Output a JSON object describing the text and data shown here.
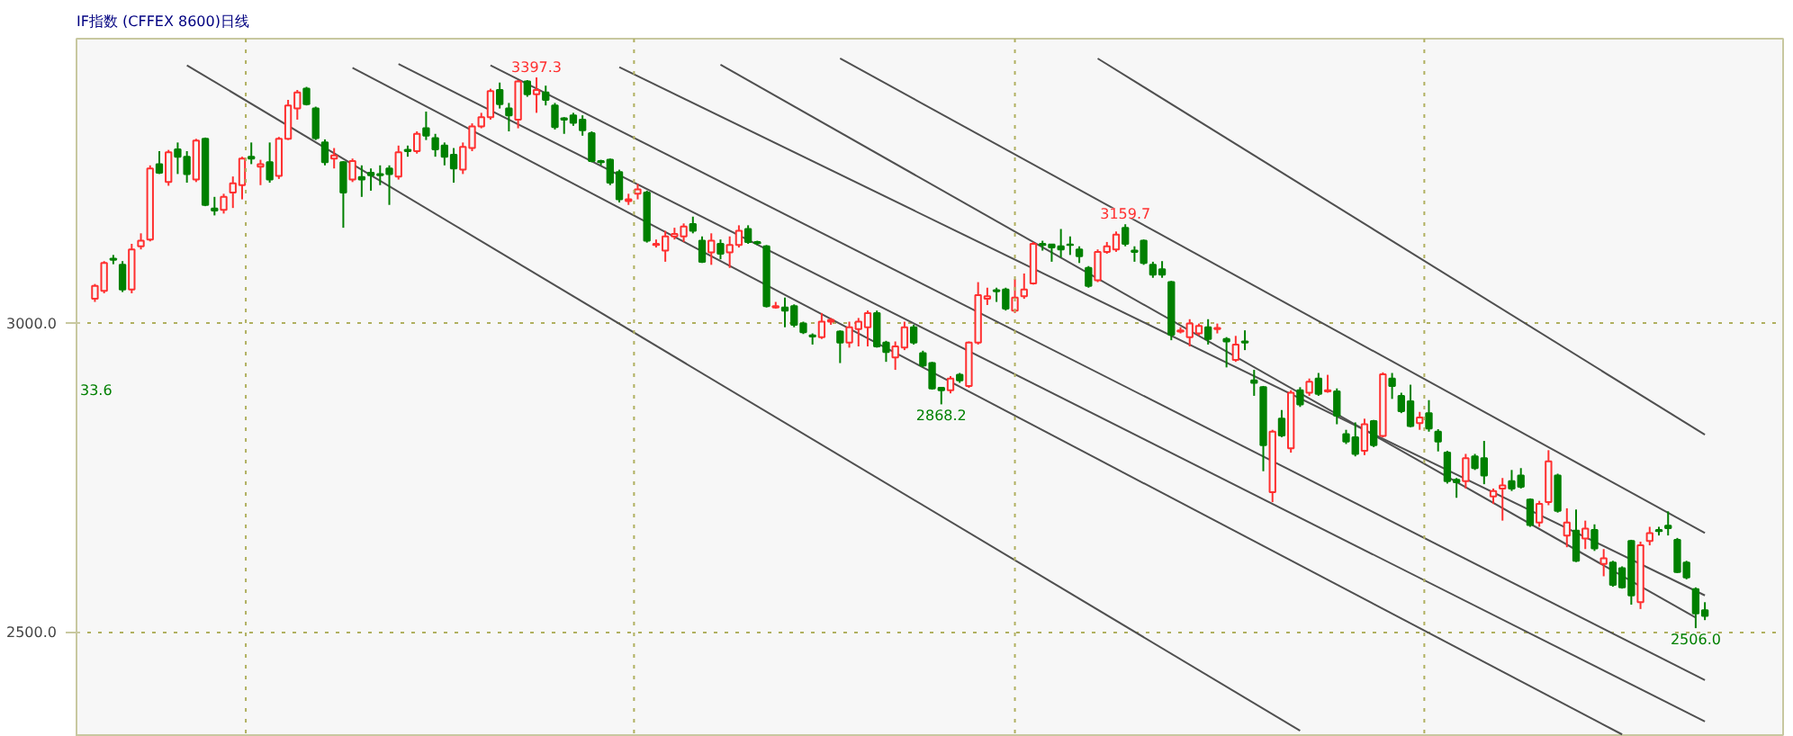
{
  "chart_data": {
    "type": "candlestick",
    "title": "IF指数  (CFFEX 8600)日线",
    "categories": [
      null,
      null,
      null,
      null,
      null,
      null,
      null,
      null,
      null,
      null,
      null,
      null,
      null,
      null,
      null,
      null,
      null,
      null,
      null,
      null,
      null,
      null,
      null,
      null,
      null,
      null,
      null,
      null,
      null,
      null,
      null,
      null,
      null,
      null,
      null,
      null,
      null,
      null,
      null,
      null,
      null,
      null,
      null,
      null,
      null,
      null,
      null,
      null,
      null,
      null,
      null,
      null,
      null,
      null,
      null,
      null,
      null,
      null,
      null,
      null,
      null,
      null,
      null,
      null,
      null,
      null,
      null,
      null,
      null,
      null,
      null,
      null,
      null,
      null,
      null,
      null,
      null,
      null,
      null,
      null,
      null,
      null,
      null,
      null,
      null,
      null,
      null,
      null,
      null,
      null,
      null,
      null,
      null,
      null,
      null,
      null,
      null,
      null,
      null,
      null,
      null,
      null,
      null,
      null,
      null,
      null,
      null,
      null,
      null,
      null,
      null,
      null,
      null,
      null,
      null,
      null,
      null,
      null,
      null,
      null,
      null,
      null,
      null,
      null,
      null,
      null,
      null,
      null,
      null,
      null,
      null,
      null,
      null,
      null,
      null,
      null,
      null,
      null,
      null,
      null,
      null,
      null,
      null,
      null,
      null,
      null,
      null,
      null,
      null,
      null,
      null,
      null,
      null,
      null,
      null,
      null,
      null,
      null,
      null,
      null,
      null,
      null,
      null,
      null,
      null,
      null,
      null,
      null,
      null,
      null,
      null,
      null,
      null,
      null,
      null,
      null
    ],
    "ohlc": [
      [
        3039,
        3063,
        3034,
        3060
      ],
      [
        3052,
        3100,
        3048,
        3097
      ],
      [
        3104,
        3110,
        3095,
        3102
      ],
      [
        3094,
        3100,
        3050,
        3054
      ],
      [
        3054,
        3128,
        3048,
        3119
      ],
      [
        3124,
        3145,
        3119,
        3133
      ],
      [
        3135,
        3255,
        3132,
        3250
      ],
      [
        3257,
        3278,
        3241,
        3243
      ],
      [
        3228,
        3280,
        3222,
        3276
      ],
      [
        3281,
        3292,
        3241,
        3269
      ],
      [
        3269,
        3278,
        3227,
        3241
      ],
      [
        3232,
        3298,
        3228,
        3295
      ],
      [
        3298,
        3300,
        3189,
        3191
      ],
      [
        3185,
        3204,
        3174,
        3182
      ],
      [
        3183,
        3209,
        3177,
        3204
      ],
      [
        3211,
        3237,
        3186,
        3226
      ],
      [
        3223,
        3269,
        3200,
        3266
      ],
      [
        3269,
        3292,
        3257,
        3266
      ],
      [
        3253,
        3264,
        3223,
        3257
      ],
      [
        3260,
        3292,
        3227,
        3232
      ],
      [
        3238,
        3301,
        3233,
        3298
      ],
      [
        3298,
        3361,
        3296,
        3352
      ],
      [
        3347,
        3377,
        3329,
        3373
      ],
      [
        3379,
        3382,
        3352,
        3354
      ],
      [
        3347,
        3350,
        3296,
        3299
      ],
      [
        3292,
        3297,
        3255,
        3260
      ],
      [
        3266,
        3283,
        3250,
        3271
      ],
      [
        3260,
        3262,
        3154,
        3211
      ],
      [
        3232,
        3266,
        3228,
        3262
      ],
      [
        3236,
        3255,
        3204,
        3232
      ],
      [
        3243,
        3250,
        3214,
        3239
      ],
      [
        3241,
        3255,
        3223,
        3239
      ],
      [
        3250,
        3255,
        3191,
        3241
      ],
      [
        3237,
        3287,
        3232,
        3276
      ],
      [
        3280,
        3287,
        3269,
        3278
      ],
      [
        3278,
        3310,
        3274,
        3306
      ],
      [
        3315,
        3342,
        3296,
        3303
      ],
      [
        3299,
        3306,
        3269,
        3281
      ],
      [
        3287,
        3292,
        3255,
        3269
      ],
      [
        3272,
        3283,
        3227,
        3250
      ],
      [
        3248,
        3292,
        3241,
        3285
      ],
      [
        3283,
        3323,
        3278,
        3318
      ],
      [
        3318,
        3340,
        3315,
        3333
      ],
      [
        3333,
        3379,
        3329,
        3375
      ],
      [
        3377,
        3389,
        3347,
        3354
      ],
      [
        3347,
        3356,
        3310,
        3336
      ],
      [
        3329,
        3393,
        3315,
        3391
      ],
      [
        3391,
        3393,
        3366,
        3370
      ],
      [
        3370,
        3397.3,
        3340,
        3377
      ],
      [
        3373,
        3384,
        3352,
        3361
      ],
      [
        3352,
        3356,
        3313,
        3317
      ],
      [
        3331,
        3333,
        3306,
        3329
      ],
      [
        3336,
        3340,
        3319,
        3324
      ],
      [
        3329,
        3336,
        3303,
        3312
      ],
      [
        3307,
        3310,
        3260,
        3262
      ],
      [
        3262,
        3264,
        3255,
        3260
      ],
      [
        3264,
        3266,
        3223,
        3227
      ],
      [
        3244,
        3248,
        3195,
        3200
      ],
      [
        3197,
        3209,
        3191,
        3200
      ],
      [
        3209,
        3225,
        3200,
        3216
      ],
      [
        3211,
        3214,
        3130,
        3133
      ],
      [
        3126,
        3135,
        3122,
        3128
      ],
      [
        3117,
        3149,
        3099,
        3140
      ],
      [
        3140,
        3154,
        3135,
        3144
      ],
      [
        3140,
        3161,
        3131,
        3156
      ],
      [
        3160,
        3172,
        3145,
        3149
      ],
      [
        3133,
        3140,
        3097,
        3099
      ],
      [
        3114,
        3145,
        3094,
        3133
      ],
      [
        3128,
        3135,
        3103,
        3112
      ],
      [
        3114,
        3140,
        3089,
        3126
      ],
      [
        3126,
        3158,
        3122,
        3149
      ],
      [
        3152,
        3158,
        3128,
        3131
      ],
      [
        3131,
        3133,
        3126,
        3129
      ],
      [
        3124,
        3126,
        3025,
        3027
      ],
      [
        3025,
        3034,
        3023,
        3027
      ],
      [
        3025,
        3041,
        2993,
        3020
      ],
      [
        3027,
        3030,
        2993,
        2997
      ],
      [
        2999,
        3002,
        2982,
        2985
      ],
      [
        2980,
        2983,
        2965,
        2978
      ],
      [
        2977,
        3016,
        2974,
        3002
      ],
      [
        3002,
        3008,
        2997,
        3005
      ],
      [
        2986,
        2988,
        2935,
        2968
      ],
      [
        2968,
        3002,
        2960,
        2993
      ],
      [
        2990,
        3008,
        2962,
        3002
      ],
      [
        2993,
        3020,
        2962,
        3016
      ],
      [
        3016,
        3020,
        2960,
        2962
      ],
      [
        2968,
        2971,
        2937,
        2953
      ],
      [
        2944,
        2970,
        2924,
        2962
      ],
      [
        2960,
        3002,
        2956,
        2993
      ],
      [
        2993,
        2997,
        2965,
        2968
      ],
      [
        2951,
        2955,
        2928,
        2931
      ],
      [
        2935,
        2937,
        2892,
        2894
      ],
      [
        2895,
        2896,
        2868.2,
        2891
      ],
      [
        2891,
        2914,
        2886,
        2910
      ],
      [
        2916,
        2919,
        2903,
        2907
      ],
      [
        2898,
        2970,
        2895,
        2968
      ],
      [
        2968,
        3066,
        2965,
        3045
      ],
      [
        3039,
        3057,
        3029,
        3043
      ],
      [
        3053,
        3057,
        3034,
        3051
      ],
      [
        3054,
        3057,
        3020,
        3023
      ],
      [
        3020,
        3071,
        3016,
        3041
      ],
      [
        3043,
        3080,
        3039,
        3054
      ],
      [
        3064,
        3131,
        3062,
        3128
      ],
      [
        3128,
        3133,
        3117,
        3126
      ],
      [
        3127,
        3128,
        3099,
        3122
      ],
      [
        3124,
        3152,
        3106,
        3119
      ],
      [
        3127,
        3140,
        3110,
        3126
      ],
      [
        3119,
        3124,
        3097,
        3108
      ],
      [
        3089,
        3092,
        3057,
        3060
      ],
      [
        3069,
        3119,
        3066,
        3115
      ],
      [
        3115,
        3131,
        3112,
        3124
      ],
      [
        3119,
        3148,
        3115,
        3143
      ],
      [
        3154,
        3159.7,
        3124,
        3128
      ],
      [
        3117,
        3124,
        3099,
        3115
      ],
      [
        3133,
        3135,
        3094,
        3097
      ],
      [
        3094,
        3099,
        3073,
        3078
      ],
      [
        3087,
        3100,
        3073,
        3078
      ],
      [
        3066,
        3068,
        2972,
        2981
      ],
      [
        2986,
        2993,
        2983,
        2988
      ],
      [
        2977,
        3006,
        2962,
        2999
      ],
      [
        2983,
        2999,
        2979,
        2995
      ],
      [
        2993,
        3006,
        2965,
        2974
      ],
      [
        2990,
        2999,
        2983,
        2992
      ],
      [
        2974,
        2977,
        2928,
        2970
      ],
      [
        2940,
        2979,
        2937,
        2965
      ],
      [
        2970,
        2988,
        2956,
        2968
      ],
      [
        2907,
        2924,
        2882,
        2903
      ],
      [
        2896,
        2898,
        2760,
        2802
      ],
      [
        2726,
        2827,
        2710,
        2824
      ],
      [
        2845,
        2859,
        2815,
        2818
      ],
      [
        2797,
        2891,
        2790,
        2887
      ],
      [
        2891,
        2896,
        2864,
        2868
      ],
      [
        2887,
        2910,
        2882,
        2905
      ],
      [
        2910,
        2919,
        2882,
        2885
      ],
      [
        2889,
        2916,
        2887,
        2891
      ],
      [
        2889,
        2894,
        2836,
        2850
      ],
      [
        2820,
        2827,
        2804,
        2808
      ],
      [
        2815,
        2839,
        2784,
        2788
      ],
      [
        2793,
        2845,
        2786,
        2836
      ],
      [
        2841,
        2843,
        2799,
        2802
      ],
      [
        2817,
        2920,
        2815,
        2917
      ],
      [
        2910,
        2919,
        2877,
        2898
      ],
      [
        2882,
        2887,
        2854,
        2857
      ],
      [
        2873,
        2900,
        2831,
        2833
      ],
      [
        2838,
        2856,
        2827,
        2847
      ],
      [
        2854,
        2875,
        2824,
        2829
      ],
      [
        2824,
        2828,
        2792,
        2808
      ],
      [
        2790,
        2793,
        2740,
        2744
      ],
      [
        2746,
        2749,
        2717,
        2742
      ],
      [
        2744,
        2788,
        2732,
        2781
      ],
      [
        2784,
        2788,
        2762,
        2765
      ],
      [
        2781,
        2809,
        2739,
        2753
      ],
      [
        2719,
        2732,
        2707,
        2728
      ],
      [
        2732,
        2749,
        2680,
        2737
      ],
      [
        2744,
        2762,
        2728,
        2732
      ],
      [
        2753,
        2765,
        2732,
        2735
      ],
      [
        2714,
        2716,
        2670,
        2673
      ],
      [
        2677,
        2712,
        2670,
        2707
      ],
      [
        2710,
        2794,
        2705,
        2776
      ],
      [
        2753,
        2756,
        2693,
        2696
      ],
      [
        2656,
        2700,
        2637,
        2677
      ],
      [
        2664,
        2698,
        2613,
        2615
      ],
      [
        2651,
        2680,
        2634,
        2667
      ],
      [
        2665,
        2674,
        2631,
        2635
      ],
      [
        2610,
        2634,
        2590,
        2619
      ],
      [
        2612,
        2615,
        2573,
        2576
      ],
      [
        2603,
        2606,
        2570,
        2572
      ],
      [
        2647,
        2649,
        2544,
        2559
      ],
      [
        2548,
        2646,
        2537,
        2640
      ],
      [
        2647,
        2670,
        2640,
        2660
      ],
      [
        2665,
        2670,
        2656,
        2663
      ],
      [
        2672,
        2695,
        2656,
        2668
      ],
      [
        2649,
        2652,
        2595,
        2597
      ],
      [
        2612,
        2615,
        2585,
        2588
      ],
      [
        2569,
        2572,
        2506.0,
        2530
      ],
      [
        2535,
        2548,
        2519,
        2526
      ]
    ],
    "series": [
      {
        "type": "line",
        "color": "#505050",
        "values": [
          null,
          null,
          null,
          null,
          null,
          null,
          null,
          null,
          null,
          null,
          null,
          null,
          null,
          null,
          null,
          null,
          null,
          null,
          null,
          null,
          null,
          null,
          null,
          null,
          null,
          null,
          null,
          null,
          null,
          null,
          null,
          null,
          null,
          null,
          null,
          null,
          null,
          null,
          null,
          null,
          null,
          null,
          null,
          null,
          null,
          null,
          null,
          null,
          null,
          null,
          null,
          null,
          null,
          null,
          null,
          null,
          null,
          null,
          null,
          null,
          null,
          null,
          null,
          null,
          null,
          null,
          null,
          null,
          null,
          null,
          null,
          null,
          null,
          null,
          null,
          null,
          null,
          null,
          null,
          null,
          null,
          null,
          null,
          null,
          null,
          null,
          null,
          null,
          null,
          null,
          null,
          null,
          null,
          null,
          null,
          null,
          null,
          null,
          null,
          null,
          null,
          null,
          null,
          null,
          null,
          null,
          null,
          null,
          null,
          3428,
          null,
          null,
          null,
          null,
          null,
          null,
          null,
          null,
          null,
          null,
          null,
          null,
          null,
          null,
          null,
          null,
          null,
          null,
          null,
          null,
          null,
          null,
          null,
          null,
          null,
          null,
          null,
          null,
          null,
          null,
          null,
          null,
          null,
          null,
          null,
          null,
          null,
          null,
          null,
          null,
          null,
          null,
          null,
          null,
          null,
          null,
          null,
          null,
          null,
          null,
          null,
          null,
          null,
          null,
          null,
          null,
          null,
          null,
          null,
          null,
          null,
          null,
          null,
          null,
          null,
          2819
        ]
      },
      {
        "type": "line",
        "color": "#505050",
        "values": [
          null,
          null,
          null,
          null,
          null,
          null,
          null,
          null,
          null,
          null,
          null,
          null,
          null,
          null,
          null,
          null,
          null,
          null,
          null,
          null,
          null,
          null,
          null,
          null,
          null,
          null,
          null,
          null,
          null,
          null,
          null,
          null,
          null,
          null,
          null,
          null,
          null,
          null,
          null,
          null,
          null,
          null,
          null,
          null,
          null,
          null,
          null,
          null,
          null,
          null,
          null,
          null,
          null,
          null,
          null,
          null,
          null,
          null,
          null,
          null,
          null,
          null,
          null,
          null,
          null,
          null,
          null,
          null,
          null,
          null,
          null,
          null,
          null,
          null,
          null,
          null,
          null,
          null,
          null,
          null,
          null,
          3428,
          null,
          null,
          null,
          null,
          null,
          null,
          null,
          null,
          null,
          null,
          null,
          null,
          null,
          null,
          null,
          null,
          null,
          null,
          null,
          null,
          null,
          null,
          null,
          null,
          null,
          null,
          null,
          null,
          null,
          null,
          null,
          null,
          null,
          null,
          null,
          null,
          null,
          null,
          null,
          null,
          null,
          null,
          null,
          null,
          null,
          null,
          null,
          null,
          null,
          null,
          null,
          null,
          null,
          null,
          null,
          null,
          null,
          null,
          null,
          null,
          null,
          null,
          null,
          null,
          null,
          null,
          null,
          null,
          null,
          null,
          null,
          null,
          null,
          null,
          null,
          null,
          null,
          null,
          null,
          null,
          null,
          null,
          null,
          null,
          null,
          null,
          null,
          null,
          null,
          null,
          null,
          null,
          null,
          2660
        ]
      },
      {
        "type": "line",
        "color": "#505050",
        "values": [
          null,
          null,
          null,
          null,
          null,
          null,
          null,
          null,
          null,
          null,
          null,
          null,
          null,
          null,
          null,
          null,
          null,
          null,
          null,
          null,
          null,
          null,
          null,
          null,
          null,
          null,
          null,
          null,
          null,
          null,
          null,
          null,
          null,
          null,
          null,
          null,
          null,
          null,
          null,
          null,
          null,
          null,
          null,
          null,
          null,
          null,
          null,
          null,
          null,
          null,
          null,
          null,
          null,
          null,
          null,
          null,
          null,
          null,
          null,
          null,
          null,
          null,
          null,
          null,
          null,
          null,
          null,
          null,
          3418,
          null,
          null,
          null,
          null,
          null,
          null,
          null,
          null,
          null,
          null,
          null,
          null,
          null,
          null,
          null,
          null,
          null,
          null,
          null,
          null,
          null,
          null,
          null,
          null,
          null,
          null,
          null,
          null,
          null,
          null,
          null,
          null,
          null,
          null,
          null,
          null,
          null,
          null,
          null,
          null,
          null,
          null,
          null,
          null,
          null,
          null,
          null,
          null,
          null,
          null,
          null,
          null,
          null,
          null,
          null,
          null,
          null,
          null,
          null,
          null,
          null,
          null,
          null,
          null,
          null,
          null,
          null,
          null,
          null,
          null,
          null,
          null,
          null,
          null,
          null,
          null,
          null,
          null,
          null,
          null,
          null,
          null,
          null,
          null,
          null,
          null,
          null,
          null,
          null,
          null,
          null,
          null,
          null,
          null,
          null,
          null,
          null,
          null,
          null,
          null,
          null,
          null,
          null,
          null,
          null,
          2523,
          null
        ]
      },
      {
        "type": "line",
        "color": "#505050",
        "values": [
          null,
          null,
          null,
          null,
          null,
          null,
          null,
          null,
          null,
          null,
          null,
          null,
          null,
          null,
          null,
          null,
          null,
          null,
          null,
          null,
          null,
          null,
          null,
          null,
          null,
          null,
          null,
          null,
          null,
          null,
          null,
          null,
          null,
          null,
          null,
          null,
          null,
          null,
          null,
          null,
          null,
          null,
          null,
          null,
          null,
          null,
          null,
          null,
          null,
          null,
          null,
          null,
          null,
          null,
          null,
          null,
          null,
          3414,
          null,
          null,
          null,
          null,
          null,
          null,
          null,
          null,
          null,
          null,
          null,
          null,
          null,
          null,
          null,
          null,
          null,
          null,
          null,
          null,
          null,
          null,
          null,
          null,
          null,
          null,
          null,
          null,
          null,
          null,
          null,
          null,
          null,
          null,
          null,
          null,
          null,
          null,
          null,
          null,
          null,
          null,
          null,
          null,
          null,
          null,
          null,
          null,
          null,
          null,
          null,
          null,
          null,
          null,
          null,
          null,
          null,
          null,
          null,
          null,
          null,
          null,
          null,
          null,
          null,
          null,
          null,
          null,
          null,
          null,
          null,
          null,
          null,
          null,
          null,
          null,
          null,
          null,
          null,
          null,
          null,
          null,
          null,
          null,
          null,
          null,
          null,
          null,
          null,
          null,
          null,
          null,
          null,
          null,
          null,
          null,
          null,
          null,
          null,
          null,
          null,
          null,
          null,
          null,
          null,
          null,
          null,
          null,
          null,
          null,
          null,
          null,
          null,
          null,
          null,
          null,
          null,
          2559
        ]
      },
      {
        "type": "line",
        "color": "#505050",
        "values": [
          null,
          null,
          null,
          null,
          null,
          null,
          null,
          null,
          null,
          null,
          null,
          null,
          null,
          null,
          null,
          null,
          null,
          null,
          null,
          null,
          null,
          null,
          null,
          null,
          null,
          null,
          null,
          null,
          null,
          null,
          null,
          null,
          null,
          null,
          null,
          null,
          null,
          null,
          null,
          null,
          null,
          null,
          null,
          3417,
          null,
          null,
          null,
          null,
          null,
          null,
          null,
          null,
          null,
          null,
          null,
          null,
          null,
          null,
          null,
          null,
          null,
          null,
          null,
          null,
          null,
          null,
          null,
          null,
          null,
          null,
          null,
          null,
          null,
          null,
          null,
          null,
          null,
          null,
          null,
          null,
          null,
          null,
          null,
          null,
          null,
          null,
          null,
          null,
          null,
          null,
          null,
          null,
          null,
          null,
          null,
          null,
          null,
          null,
          null,
          null,
          null,
          null,
          null,
          null,
          null,
          null,
          null,
          null,
          null,
          null,
          null,
          null,
          null,
          null,
          null,
          null,
          null,
          null,
          null,
          null,
          null,
          null,
          null,
          null,
          null,
          null,
          null,
          null,
          null,
          null,
          null,
          null,
          null,
          null,
          null,
          null,
          null,
          null,
          null,
          null,
          null,
          null,
          null,
          null,
          null,
          null,
          null,
          null,
          null,
          null,
          null,
          null,
          null,
          null,
          null,
          null,
          null,
          null,
          null,
          null,
          null,
          null,
          null,
          null,
          null,
          null,
          null,
          null,
          null,
          null,
          null,
          null,
          null,
          null,
          null,
          2422
        ]
      },
      {
        "type": "line",
        "color": "#505050",
        "values": [
          null,
          null,
          null,
          null,
          null,
          null,
          null,
          null,
          null,
          null,
          null,
          null,
          null,
          null,
          null,
          null,
          null,
          null,
          null,
          null,
          null,
          null,
          null,
          null,
          null,
          null,
          null,
          null,
          null,
          null,
          null,
          null,
          null,
          3419,
          null,
          null,
          null,
          null,
          null,
          null,
          null,
          null,
          null,
          null,
          null,
          null,
          null,
          null,
          null,
          null,
          null,
          null,
          null,
          null,
          null,
          null,
          null,
          null,
          null,
          null,
          null,
          null,
          null,
          null,
          null,
          null,
          null,
          null,
          null,
          null,
          null,
          null,
          null,
          null,
          null,
          null,
          null,
          null,
          null,
          null,
          null,
          null,
          null,
          null,
          null,
          null,
          null,
          null,
          null,
          null,
          null,
          null,
          null,
          null,
          null,
          null,
          null,
          null,
          null,
          null,
          null,
          null,
          null,
          null,
          null,
          null,
          null,
          null,
          null,
          null,
          null,
          null,
          null,
          null,
          null,
          null,
          null,
          null,
          null,
          null,
          null,
          null,
          null,
          null,
          null,
          null,
          null,
          null,
          null,
          null,
          null,
          null,
          null,
          null,
          null,
          null,
          null,
          null,
          null,
          null,
          null,
          null,
          null,
          null,
          null,
          null,
          null,
          null,
          null,
          null,
          null,
          null,
          null,
          null,
          null,
          null,
          null,
          null,
          null,
          null,
          null,
          null,
          null,
          null,
          null,
          null,
          null,
          null,
          null,
          null,
          null,
          null,
          null,
          null,
          null,
          2355
        ]
      },
      {
        "type": "line",
        "color": "#505050",
        "values": [
          null,
          null,
          null,
          null,
          null,
          null,
          null,
          null,
          null,
          null,
          null,
          null,
          null,
          null,
          null,
          null,
          null,
          null,
          null,
          null,
          null,
          null,
          null,
          null,
          null,
          null,
          null,
          null,
          3413,
          null,
          null,
          null,
          null,
          null,
          null,
          null,
          null,
          null,
          null,
          null,
          null,
          null,
          null,
          null,
          null,
          null,
          null,
          null,
          null,
          null,
          null,
          null,
          null,
          null,
          null,
          null,
          null,
          null,
          null,
          null,
          null,
          null,
          null,
          null,
          null,
          null,
          null,
          null,
          null,
          null,
          null,
          null,
          null,
          null,
          null,
          null,
          null,
          null,
          null,
          null,
          null,
          null,
          null,
          null,
          null,
          null,
          null,
          null,
          null,
          null,
          null,
          null,
          null,
          null,
          null,
          null,
          null,
          null,
          null,
          null,
          null,
          null,
          null,
          null,
          null,
          null,
          null,
          null,
          null,
          null,
          null,
          null,
          null,
          null,
          null,
          null,
          null,
          null,
          null,
          null,
          null,
          null,
          null,
          null,
          null,
          null,
          null,
          null,
          null,
          null,
          null,
          null,
          null,
          null,
          null,
          null,
          null,
          null,
          null,
          null,
          null,
          null,
          null,
          null,
          null,
          null,
          null,
          null,
          null,
          null,
          null,
          null,
          null,
          null,
          null,
          null,
          null,
          null,
          null,
          null,
          null,
          null,
          null,
          null,
          null,
          null,
          2334,
          null,
          null,
          null,
          null,
          null,
          null,
          null,
          null,
          null
        ]
      },
      {
        "type": "line",
        "color": "#505050",
        "values": [
          null,
          null,
          null,
          null,
          null,
          null,
          null,
          null,
          null,
          null,
          3417,
          null,
          null,
          null,
          null,
          null,
          null,
          null,
          null,
          null,
          null,
          null,
          null,
          null,
          null,
          null,
          null,
          null,
          null,
          null,
          null,
          null,
          null,
          null,
          null,
          null,
          null,
          null,
          null,
          null,
          null,
          null,
          null,
          null,
          null,
          null,
          null,
          null,
          null,
          null,
          null,
          null,
          null,
          null,
          null,
          null,
          null,
          null,
          null,
          null,
          null,
          null,
          null,
          null,
          null,
          null,
          null,
          null,
          null,
          null,
          null,
          null,
          null,
          null,
          null,
          null,
          null,
          null,
          null,
          null,
          null,
          null,
          null,
          null,
          null,
          null,
          null,
          null,
          null,
          null,
          null,
          null,
          null,
          null,
          null,
          null,
          null,
          null,
          null,
          null,
          null,
          null,
          null,
          null,
          null,
          null,
          null,
          null,
          null,
          null,
          null,
          null,
          null,
          null,
          null,
          null,
          null,
          null,
          null,
          null,
          null,
          null,
          null,
          null,
          null,
          null,
          null,
          null,
          null,
          null,
          null,
          2340,
          null,
          null,
          null,
          null,
          null,
          null,
          null,
          null,
          null,
          null,
          null,
          null,
          null,
          null,
          null,
          null,
          null,
          null,
          null,
          null,
          null,
          null,
          null,
          null,
          null,
          null,
          null,
          null,
          null,
          null,
          null,
          null,
          null,
          null,
          null,
          null,
          null,
          null,
          null,
          null,
          null,
          null,
          null,
          null
        ]
      }
    ],
    "ylim": [
      2330,
      3460
    ],
    "yticks": [
      {
        "value": 3000,
        "label": "3000.0"
      },
      {
        "value": 2500,
        "label": "2500.0"
      }
    ],
    "grid": "y",
    "tick_labels": "y",
    "annotations": [
      {
        "text": "3397.3",
        "y": 3397.3
      },
      {
        "text": "3159.7",
        "y": 3159.7
      },
      {
        "text": "2868.2",
        "y": 2868.2
      },
      {
        "text": "2506.0",
        "y": 2506.0
      },
      "33.6"
    ]
  }
}
